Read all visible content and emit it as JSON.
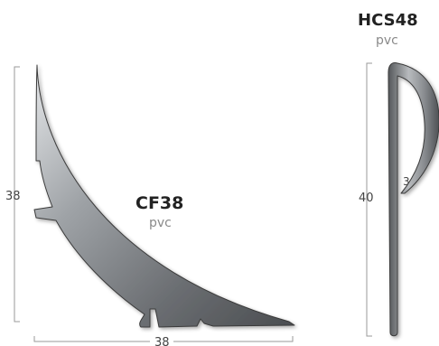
{
  "profiles": {
    "cf38": {
      "name": "CF38",
      "material": "pvc",
      "height_label": "38",
      "width_label": "38"
    },
    "hcs48": {
      "name": "HCS48",
      "material": "pvc",
      "height_label": "40",
      "lip_label": "3"
    }
  },
  "colors": {
    "profile_dark": "#5a5d60",
    "profile_mid": "#9ea2a6",
    "profile_light": "#e6e8ea",
    "dimension_line": "#9a9a9a",
    "title_text": "#222222",
    "material_text": "#8a8a8a"
  }
}
